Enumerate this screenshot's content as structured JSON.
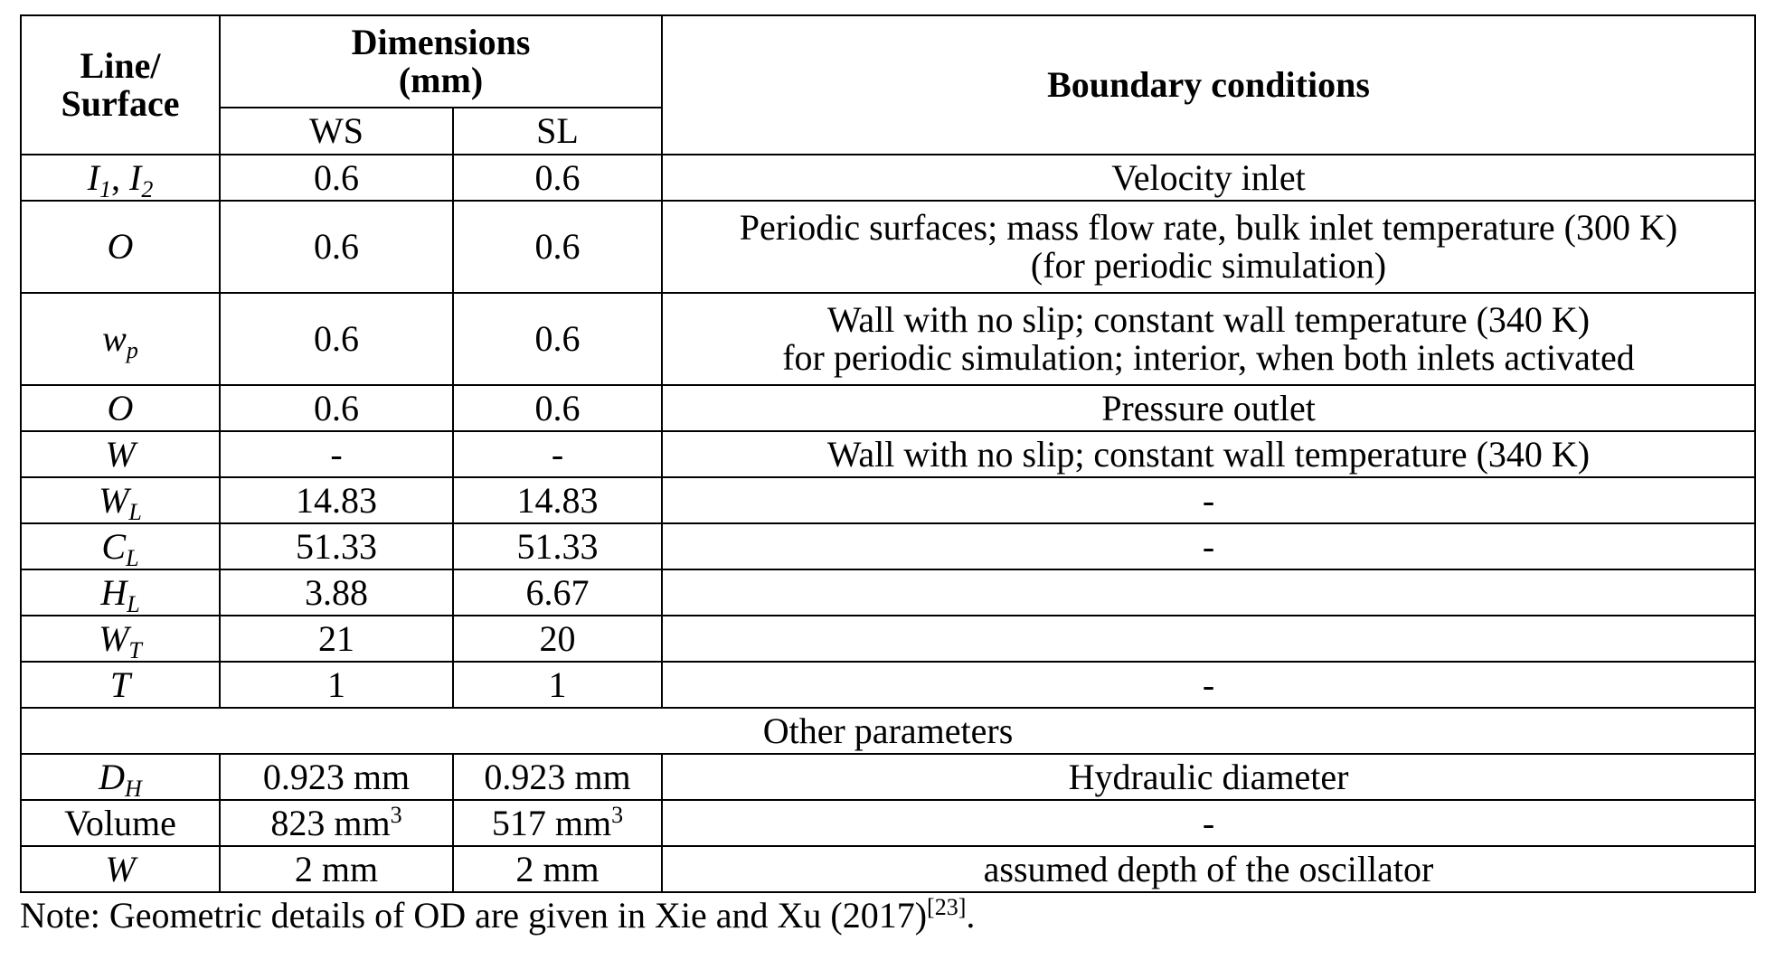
{
  "header": {
    "col1": "Line/\nSurface",
    "col1_line1": "Line/",
    "col1_line2": "Surface",
    "dimensions_line1": "Dimensions",
    "dimensions_line2": "(mm)",
    "ws": "WS",
    "sl": "SL",
    "boundary": "Boundary conditions"
  },
  "rows": [
    {
      "main": "I",
      "sub": "1",
      "main2": "I",
      "sub2": "2",
      "ws": "0.6",
      "sl": "0.6",
      "bc": "Velocity inlet"
    },
    {
      "main": "O",
      "ws": "0.6",
      "sl": "0.6",
      "bc1": "Periodic surfaces; mass flow rate, bulk inlet temperature (300 K)",
      "bc2": "(for periodic simulation)"
    },
    {
      "main": "w",
      "sub": "p",
      "ws": "0.6",
      "sl": "0.6",
      "bc1": "Wall with no slip; constant wall temperature (340 K)",
      "bc2": "for periodic simulation; interior, when both inlets activated"
    },
    {
      "main": "O",
      "ws": "0.6",
      "sl": "0.6",
      "bc": "Pressure outlet"
    },
    {
      "main": "W",
      "ws": "-",
      "sl": "-",
      "bc": "Wall with no slip; constant wall temperature (340 K)"
    },
    {
      "main": "W",
      "sub": "L",
      "ws": "14.83",
      "sl": "14.83",
      "bc": "-"
    },
    {
      "main": "C",
      "sub": "L",
      "ws": "51.33",
      "sl": "51.33",
      "bc": "-"
    },
    {
      "main": "H",
      "sub": "L",
      "ws": "3.88",
      "sl": "6.67",
      "bc": ""
    },
    {
      "main": "W",
      "sub": "T",
      "ws": "21",
      "sl": "20",
      "bc": ""
    },
    {
      "main": "T",
      "ws": "1",
      "sl": "1",
      "bc": "-"
    }
  ],
  "other_title": "Other parameters",
  "other_rows": [
    {
      "main": "D",
      "sub": "H",
      "ws": "0.923 mm",
      "sl": "0.923 mm",
      "bc": "Hydraulic diameter"
    },
    {
      "label": "Volume",
      "ws": "823 mm",
      "ws_sup": "3",
      "sl": "517 mm",
      "sl_sup": "3",
      "bc": "-"
    },
    {
      "main": "W",
      "ws": "2 mm",
      "sl": "2 mm",
      "bc": "assumed depth of the oscillator"
    }
  ],
  "note": {
    "text": "Note: Geometric details of OD are given in Xie and Xu (2017)",
    "ref": "[23]",
    "end": "."
  }
}
